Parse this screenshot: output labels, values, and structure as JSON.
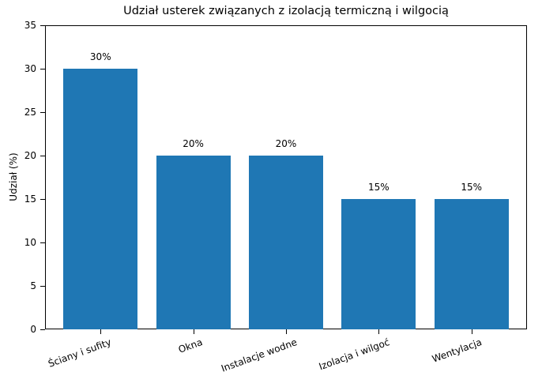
{
  "chart_data": {
    "type": "bar",
    "title": "Udział usterek związanych z izolacją termiczną i wilgocią",
    "xlabel": "",
    "ylabel": "Udział (%)",
    "ylim": [
      0,
      35
    ],
    "yticks": [
      "0",
      "5",
      "10",
      "15",
      "20",
      "25",
      "30",
      "35"
    ],
    "grid": false,
    "legend": null,
    "bar_color": "#1f77b4",
    "categories": [
      "Ściany i sufity",
      "Okna",
      "Instalacje wodne",
      "Izolacja i wilgoć",
      "Wentylacja"
    ],
    "values": [
      30,
      20,
      20,
      15,
      15
    ],
    "data_labels": [
      "30%",
      "20%",
      "20%",
      "15%",
      "15%"
    ],
    "xtick_rotation": 20
  }
}
